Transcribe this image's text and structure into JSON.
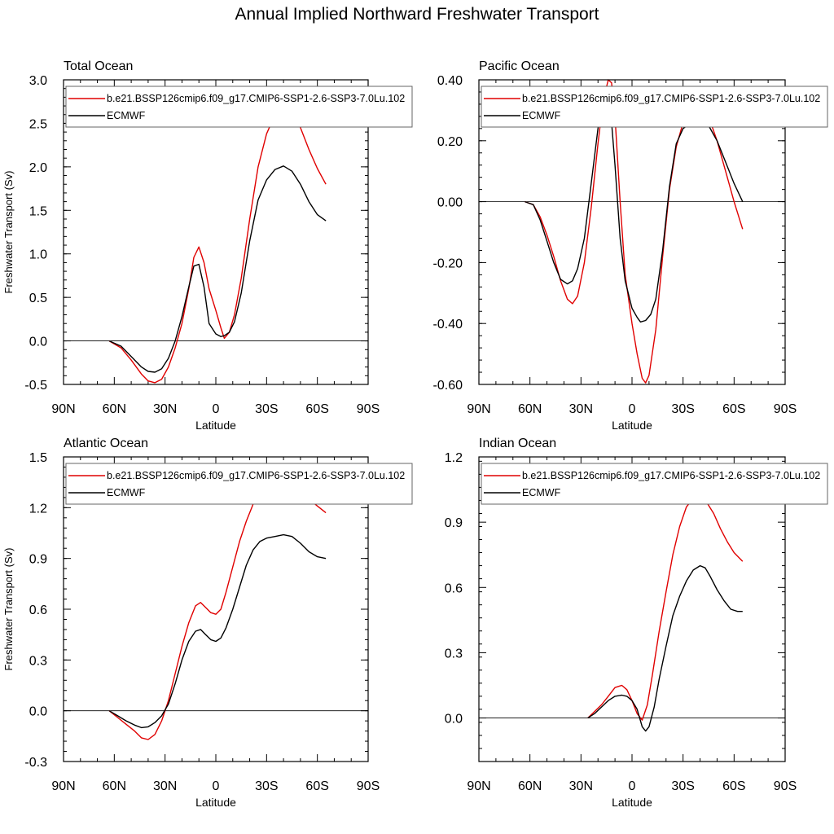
{
  "title": "Annual Implied Northward Freshwater Transport",
  "colors": {
    "model": "#e00000",
    "obs": "#000000"
  },
  "chart_data": [
    {
      "type": "line",
      "title": "Total Ocean",
      "xlabel": "Latitude",
      "ylabel": "Freshwater Transport (Sv)",
      "xticks": [
        -90,
        -60,
        -30,
        0,
        30,
        60,
        90
      ],
      "xtick_labels": [
        "90N",
        "60N",
        "30N",
        "0",
        "30S",
        "60S",
        "90S"
      ],
      "ylim": [
        -0.5,
        3.0
      ],
      "yticks": [
        -0.5,
        0,
        0.5,
        1,
        1.5,
        2,
        2.5,
        3
      ],
      "ytick_labels": [
        "-0.5",
        "0.0",
        "0.5",
        "1.0",
        "1.5",
        "2.0",
        "2.5",
        "3.0"
      ],
      "legend": "top-left",
      "series": [
        {
          "name": "b.e21.BSSP126cmip6.f09_g17.CMIP6-SSP1-2.6-SSP3-7.0Lu.102",
          "x": [
            -63,
            -56,
            -50,
            -44,
            -40,
            -36,
            -32,
            -28,
            -24,
            -20,
            -16,
            -13,
            -10,
            -7,
            -4,
            0,
            3,
            5,
            8,
            11,
            15,
            20,
            25,
            30,
            35,
            40,
            45,
            50,
            55,
            60,
            65
          ],
          "y": [
            0,
            -0.08,
            -0.22,
            -0.38,
            -0.46,
            -0.48,
            -0.44,
            -0.3,
            -0.08,
            0.2,
            0.6,
            0.96,
            1.08,
            0.9,
            0.6,
            0.35,
            0.15,
            0.03,
            0.1,
            0.3,
            0.72,
            1.4,
            2.0,
            2.38,
            2.6,
            2.72,
            2.66,
            2.45,
            2.2,
            1.98,
            1.8
          ]
        },
        {
          "name": "ECMWF",
          "x": [
            -63,
            -56,
            -50,
            -44,
            -40,
            -36,
            -32,
            -28,
            -24,
            -20,
            -16,
            -13,
            -10,
            -7,
            -4,
            0,
            3,
            5,
            8,
            11,
            15,
            20,
            25,
            30,
            35,
            40,
            45,
            50,
            55,
            60,
            65
          ],
          "y": [
            0,
            -0.06,
            -0.18,
            -0.3,
            -0.35,
            -0.36,
            -0.32,
            -0.2,
            0.0,
            0.28,
            0.62,
            0.86,
            0.88,
            0.62,
            0.2,
            0.08,
            0.05,
            0.06,
            0.1,
            0.22,
            0.55,
            1.15,
            1.62,
            1.85,
            1.97,
            2.01,
            1.95,
            1.8,
            1.6,
            1.45,
            1.38
          ]
        }
      ]
    },
    {
      "type": "line",
      "title": "Pacific Ocean",
      "xlabel": "Latitude",
      "ylabel": "",
      "xticks": [
        -90,
        -60,
        -30,
        0,
        30,
        60,
        90
      ],
      "xtick_labels": [
        "90N",
        "60N",
        "30N",
        "0",
        "30S",
        "60S",
        "90S"
      ],
      "ylim": [
        -0.6,
        0.4
      ],
      "yticks": [
        -0.6,
        -0.4,
        -0.2,
        0,
        0.2,
        0.4
      ],
      "ytick_labels": [
        "-0.60",
        "-0.40",
        "-0.20",
        "0.00",
        "0.20",
        "0.40"
      ],
      "legend": "top-left",
      "series": [
        {
          "name": "b.e21.BSSP126cmip6.f09_g17.CMIP6-SSP1-2.6-SSP3-7.0Lu.102",
          "x": [
            -63,
            -58,
            -54,
            -50,
            -46,
            -42,
            -38,
            -35,
            -32,
            -28,
            -24,
            -20,
            -17,
            -14,
            -12,
            -10,
            -7,
            -4,
            0,
            3,
            6,
            8,
            10,
            14,
            18,
            22,
            26,
            30,
            35,
            40,
            45,
            50,
            55,
            60,
            65
          ],
          "y": [
            0,
            -0.01,
            -0.05,
            -0.11,
            -0.18,
            -0.26,
            -0.32,
            -0.335,
            -0.31,
            -0.2,
            -0.02,
            0.19,
            0.33,
            0.4,
            0.39,
            0.28,
            0.0,
            -0.24,
            -0.4,
            -0.5,
            -0.58,
            -0.595,
            -0.57,
            -0.42,
            -0.18,
            0.04,
            0.18,
            0.26,
            0.3,
            0.31,
            0.28,
            0.2,
            0.1,
            0.0,
            -0.09
          ]
        },
        {
          "name": "ECMWF",
          "x": [
            -63,
            -58,
            -54,
            -50,
            -46,
            -42,
            -38,
            -35,
            -32,
            -28,
            -24,
            -20,
            -17,
            -15,
            -13,
            -10,
            -7,
            -4,
            0,
            3,
            5,
            8,
            11,
            14,
            18,
            22,
            26,
            30,
            35,
            40,
            45,
            50,
            55,
            60,
            65
          ],
          "y": [
            0,
            -0.01,
            -0.06,
            -0.13,
            -0.2,
            -0.255,
            -0.27,
            -0.26,
            -0.22,
            -0.12,
            0.06,
            0.24,
            0.35,
            0.37,
            0.33,
            0.12,
            -0.12,
            -0.26,
            -0.35,
            -0.38,
            -0.395,
            -0.39,
            -0.37,
            -0.32,
            -0.16,
            0.05,
            0.19,
            0.24,
            0.26,
            0.27,
            0.25,
            0.2,
            0.13,
            0.06,
            0.0
          ]
        }
      ]
    },
    {
      "type": "line",
      "title": "Atlantic Ocean",
      "xlabel": "Latitude",
      "ylabel": "Freshwater Transport (Sv)",
      "xticks": [
        -90,
        -60,
        -30,
        0,
        30,
        60,
        90
      ],
      "xtick_labels": [
        "90N",
        "60N",
        "30N",
        "0",
        "30S",
        "60S",
        "90S"
      ],
      "ylim": [
        -0.3,
        1.5
      ],
      "yticks": [
        -0.3,
        0,
        0.3,
        0.6,
        0.9,
        1.2,
        1.5
      ],
      "ytick_labels": [
        "-0.3",
        "0.0",
        "0.3",
        "0.6",
        "0.9",
        "1.2",
        "1.5"
      ],
      "legend": "top-left",
      "series": [
        {
          "name": "b.e21.BSSP126cmip6.f09_g17.CMIP6-SSP1-2.6-SSP3-7.0Lu.102",
          "x": [
            -63,
            -58,
            -53,
            -48,
            -44,
            -40,
            -36,
            -32,
            -28,
            -24,
            -20,
            -16,
            -12,
            -9,
            -6,
            -3,
            0,
            3,
            6,
            10,
            14,
            18,
            22,
            26,
            30,
            35,
            40,
            45,
            50,
            55,
            60,
            65
          ],
          "y": [
            0,
            -0.04,
            -0.08,
            -0.12,
            -0.16,
            -0.17,
            -0.14,
            -0.06,
            0.06,
            0.22,
            0.38,
            0.52,
            0.62,
            0.64,
            0.61,
            0.58,
            0.57,
            0.6,
            0.7,
            0.85,
            1.0,
            1.12,
            1.22,
            1.3,
            1.35,
            1.39,
            1.4,
            1.37,
            1.31,
            1.25,
            1.21,
            1.17
          ]
        },
        {
          "name": "ECMWF",
          "x": [
            -63,
            -58,
            -53,
            -48,
            -44,
            -40,
            -36,
            -32,
            -28,
            -24,
            -20,
            -16,
            -12,
            -9,
            -6,
            -3,
            0,
            3,
            6,
            10,
            14,
            18,
            22,
            26,
            30,
            35,
            40,
            45,
            50,
            55,
            60,
            65
          ],
          "y": [
            0,
            -0.03,
            -0.06,
            -0.085,
            -0.1,
            -0.095,
            -0.07,
            -0.03,
            0.04,
            0.16,
            0.3,
            0.41,
            0.47,
            0.48,
            0.45,
            0.42,
            0.41,
            0.43,
            0.49,
            0.6,
            0.73,
            0.86,
            0.95,
            1.0,
            1.02,
            1.03,
            1.04,
            1.03,
            0.99,
            0.94,
            0.91,
            0.9
          ]
        }
      ]
    },
    {
      "type": "line",
      "title": "Indian Ocean",
      "xlabel": "Latitude",
      "ylabel": "",
      "xticks": [
        -90,
        -60,
        -30,
        0,
        30,
        60,
        90
      ],
      "xtick_labels": [
        "90N",
        "60N",
        "30N",
        "0",
        "30S",
        "60S",
        "90S"
      ],
      "ylim": [
        -0.2,
        1.2
      ],
      "yticks": [
        0,
        0.3,
        0.6,
        0.9,
        1.2
      ],
      "ytick_labels": [
        "0.0",
        "0.3",
        "0.6",
        "0.9",
        "1.2"
      ],
      "legend": "top-left",
      "series": [
        {
          "name": "b.e21.BSSP126cmip6.f09_g17.CMIP6-SSP1-2.6-SSP3-7.0Lu.102",
          "x": [
            -26,
            -22,
            -18,
            -14,
            -10,
            -6,
            -3,
            0,
            3,
            6,
            9,
            12,
            16,
            20,
            24,
            28,
            32,
            36,
            40,
            44,
            48,
            52,
            56,
            60,
            65
          ],
          "y": [
            0,
            0.03,
            0.06,
            0.1,
            0.14,
            0.15,
            0.13,
            0.08,
            0.02,
            -0.01,
            0.06,
            0.2,
            0.4,
            0.58,
            0.75,
            0.88,
            0.97,
            1.01,
            1.02,
            0.99,
            0.94,
            0.87,
            0.81,
            0.76,
            0.72
          ]
        },
        {
          "name": "ECMWF",
          "x": [
            -26,
            -22,
            -18,
            -14,
            -10,
            -6,
            -3,
            0,
            3,
            6,
            8,
            10,
            13,
            16,
            20,
            24,
            28,
            32,
            36,
            40,
            43,
            46,
            50,
            54,
            58,
            62,
            65
          ],
          "y": [
            0,
            0.02,
            0.05,
            0.08,
            0.1,
            0.105,
            0.1,
            0.08,
            0.04,
            -0.04,
            -0.06,
            -0.04,
            0.05,
            0.18,
            0.33,
            0.47,
            0.56,
            0.63,
            0.68,
            0.7,
            0.69,
            0.65,
            0.59,
            0.54,
            0.5,
            0.49,
            0.49
          ]
        }
      ]
    }
  ]
}
